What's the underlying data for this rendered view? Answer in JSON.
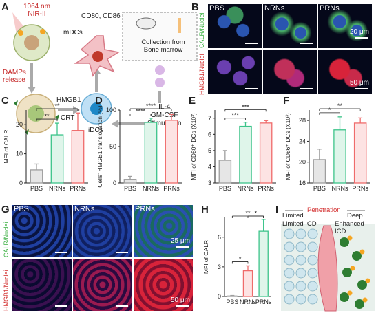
{
  "panels": {
    "A": {
      "label": "A",
      "laser": "1064 nm",
      "laser2": "NIR-II",
      "dcs_mature": "mDCs",
      "markers": "CD80, CD86",
      "collection": "Collection from",
      "collection2": "Bone marrow",
      "damps": "DAMPs",
      "damps2": "release",
      "hmgb1": "HMGB1",
      "crt": "CRT",
      "idcs": "iDCs",
      "il4": "IL-4",
      "gmcsf": "GM-CSF",
      "stim": "Stimulation"
    },
    "B": {
      "label": "B",
      "groups": [
        "PBS",
        "NRNs",
        "PRNs"
      ],
      "row1_stain": "CALR/Nuclei",
      "row2_stain": "HMGB1/Nuclei",
      "scale1": "20 μm",
      "scale2": "50 μm"
    },
    "G": {
      "label": "G",
      "groups": [
        "PBS",
        "NRNs",
        "PRNs"
      ],
      "row1_stain": "CALR/Nuclei",
      "row2_stain": "HMGB1/Nuclei",
      "scale1": "25 μm",
      "scale2": "50 μm"
    },
    "I": {
      "label": "I",
      "limited": "Limited",
      "penetration": "Penetration",
      "deep": "Deep",
      "limited_icd": "Limited ICD",
      "enhanced_icd": "Enhanced ICD"
    }
  },
  "chart_data": [
    {
      "id": "C",
      "type": "bar",
      "categories": [
        "PBS",
        "NRNs",
        "PRNs"
      ],
      "values": [
        4.5,
        16.5,
        18
      ],
      "errors": [
        2,
        4,
        6
      ],
      "ylabel": "MFI of CALR",
      "ylim": [
        0,
        25
      ],
      "yticks": [
        0,
        10,
        20
      ],
      "sig": [
        {
          "a": 0,
          "b": 1,
          "t": "**"
        },
        {
          "a": 0,
          "b": 2,
          "t": "**"
        }
      ],
      "colors": [
        "#9e9e9e",
        "#3cc48a",
        "#ef6b6b"
      ],
      "fills": [
        "#e6e6e6",
        "#dff5ea",
        "#fde3e3"
      ]
    },
    {
      "id": "D",
      "type": "bar",
      "categories": [
        "PBS",
        "NRNs",
        "PRNs"
      ],
      "values": [
        5,
        83,
        86
      ],
      "errors": [
        4,
        6,
        8
      ],
      "ylabel": "Cells' HMGB1 translocation (%)",
      "ylim": [
        0,
        100
      ],
      "yticks": [
        0,
        50,
        100
      ],
      "sig": [
        {
          "a": 0,
          "b": 1,
          "t": "****"
        },
        {
          "a": 0,
          "b": 2,
          "t": "****"
        }
      ],
      "colors": [
        "#9e9e9e",
        "#3cc48a",
        "#ef6b6b"
      ],
      "fills": [
        "#e6e6e6",
        "#dff5ea",
        "#fde3e3"
      ]
    },
    {
      "id": "E",
      "type": "bar",
      "categories": [
        "PBS",
        "NRNs",
        "PRNs"
      ],
      "values": [
        4.4,
        6.5,
        6.7
      ],
      "errors": [
        0.6,
        0.25,
        0.15
      ],
      "ylabel": "MFI of CD80⁺ DCs (X10³)",
      "ylim": [
        3,
        7.5
      ],
      "yticks": [
        3,
        4,
        5,
        6,
        7
      ],
      "sig": [
        {
          "a": 0,
          "b": 1,
          "t": "***"
        },
        {
          "a": 0,
          "b": 2,
          "t": "***"
        }
      ],
      "colors": [
        "#9e9e9e",
        "#3cc48a",
        "#ef6b6b"
      ],
      "fills": [
        "#e6e6e6",
        "#dff5ea",
        "#fde3e3"
      ]
    },
    {
      "id": "F",
      "type": "bar",
      "categories": [
        "PBS",
        "NRNs",
        "PRNs"
      ],
      "values": [
        20.5,
        26.2,
        27.5
      ],
      "errors": [
        2,
        2.5,
        1
      ],
      "ylabel": "MFI of CD86⁺ DCs (X10³)",
      "ylim": [
        16,
        30
      ],
      "yticks": [
        16,
        20,
        24,
        28
      ],
      "sig": [
        {
          "a": 0,
          "b": 1,
          "t": "*"
        },
        {
          "a": 0,
          "b": 2,
          "t": "**"
        }
      ],
      "colors": [
        "#9e9e9e",
        "#3cc48a",
        "#ef6b6b"
      ],
      "fills": [
        "#e6e6e6",
        "#dff5ea",
        "#fde3e3"
      ]
    },
    {
      "id": "H",
      "type": "bar",
      "categories": [
        "PBS",
        "NRNs",
        "PRNs"
      ],
      "values": [
        0.05,
        2.6,
        6.6
      ],
      "errors": [
        0.05,
        0.5,
        1.2
      ],
      "ylabel": "MFI of CALR",
      "ylim": [
        0,
        8
      ],
      "yticks": [
        0,
        3,
        6
      ],
      "sig": [
        {
          "a": 0,
          "b": 1,
          "t": "*"
        },
        {
          "a": 1,
          "b": 2,
          "t": "*"
        },
        {
          "a": 0,
          "b": 2,
          "t": "**"
        }
      ],
      "colors": [
        "#9e9e9e",
        "#ef6b6b",
        "#3cc48a"
      ],
      "fills": [
        "#e6e6e6",
        "#fde3e3",
        "#dff5ea"
      ]
    }
  ]
}
